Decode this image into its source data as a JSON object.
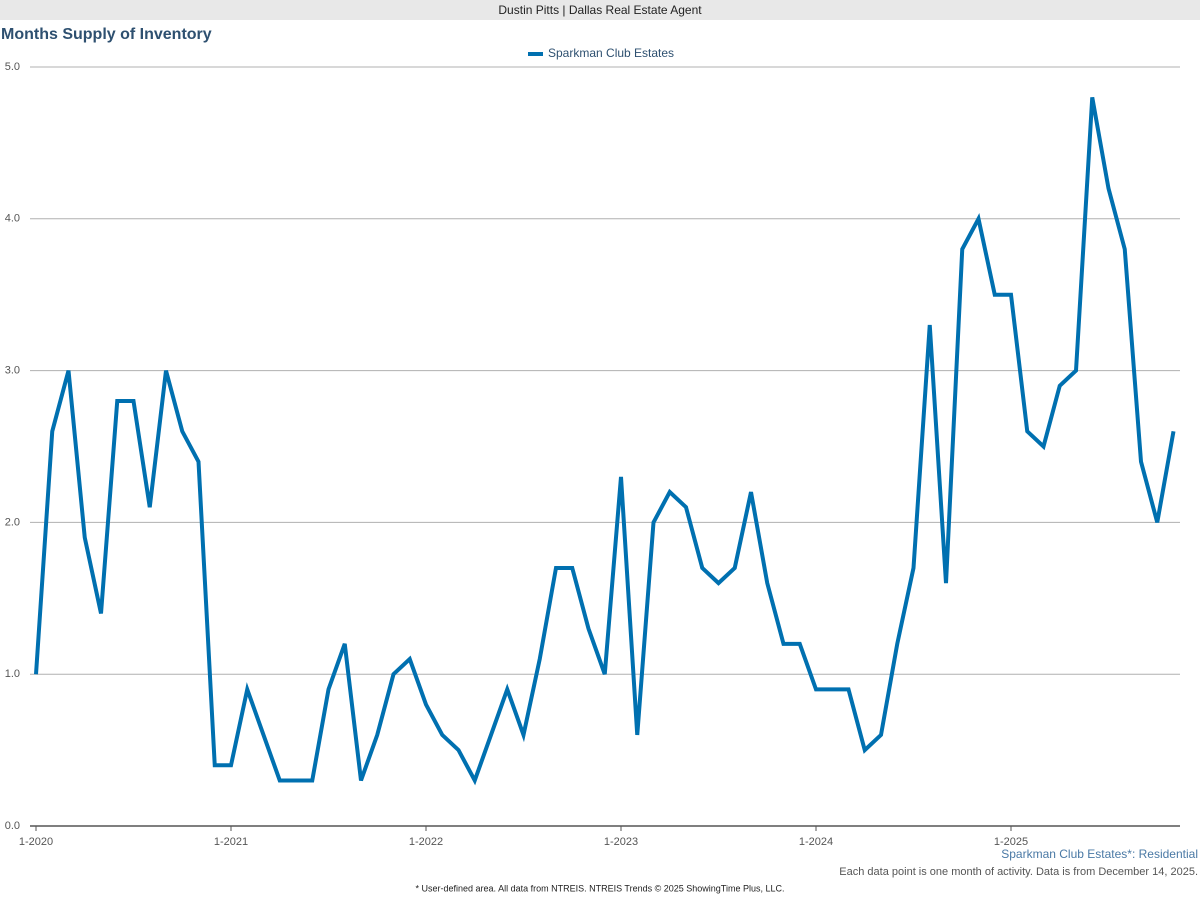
{
  "header": "Dustin Pitts | Dallas Real Estate Agent",
  "chart_data": {
    "type": "line",
    "title": "Months Supply of Inventory",
    "categories": [
      "1-2020",
      null,
      null,
      null,
      null,
      null,
      null,
      null,
      null,
      null,
      null,
      null,
      "1-2021",
      null,
      null,
      null,
      null,
      null,
      null,
      null,
      null,
      null,
      null,
      null,
      "1-2022",
      null,
      null,
      null,
      null,
      null,
      null,
      null,
      null,
      null,
      null,
      null,
      "1-2023",
      null,
      null,
      null,
      null,
      null,
      null,
      null,
      null,
      null,
      null,
      null,
      "1-2024",
      null,
      null,
      null,
      null,
      null,
      null,
      null,
      null,
      null,
      null,
      null,
      "1-2025",
      null,
      null,
      null,
      null,
      null,
      null,
      null,
      null,
      null,
      null
    ],
    "series": [
      {
        "name": "Sparkman Club Estates",
        "color": "#0070b0",
        "values": [
          1.0,
          2.6,
          3.0,
          1.9,
          1.4,
          2.8,
          2.8,
          2.1,
          3.0,
          2.6,
          2.4,
          0.4,
          0.4,
          0.9,
          0.6,
          0.3,
          0.3,
          0.3,
          0.9,
          1.2,
          0.3,
          0.6,
          1.0,
          1.1,
          0.8,
          0.6,
          0.5,
          0.3,
          0.6,
          0.9,
          0.6,
          1.1,
          1.7,
          1.7,
          1.3,
          1.0,
          2.3,
          0.6,
          2.0,
          2.2,
          2.1,
          1.7,
          1.6,
          1.7,
          2.2,
          1.6,
          1.2,
          1.2,
          0.9,
          0.9,
          0.9,
          0.5,
          0.6,
          1.2,
          1.7,
          3.3,
          1.6,
          3.8,
          4.0,
          3.5,
          3.5,
          2.6,
          2.5,
          2.9,
          3.0,
          4.8,
          4.2,
          3.8,
          2.4,
          2.0,
          2.6
        ]
      }
    ],
    "ylim": [
      0,
      5
    ],
    "yticks": [
      {
        "value": 0,
        "label": "0.0"
      },
      {
        "value": 1,
        "label": "1.0"
      },
      {
        "value": 2,
        "label": "2.0"
      },
      {
        "value": 3,
        "label": "3.0"
      },
      {
        "value": 4,
        "label": "4.0"
      },
      {
        "value": 5,
        "label": "5.0"
      }
    ],
    "grid": true,
    "area_label": "Sparkman Club Estates*: Residential",
    "note": "Each data point is one month of activity. Data is from December 14, 2025.",
    "footnote": "* User-defined area. All data from NTREIS. NTREIS Trends © 2025 ShowingTime Plus, LLC."
  }
}
